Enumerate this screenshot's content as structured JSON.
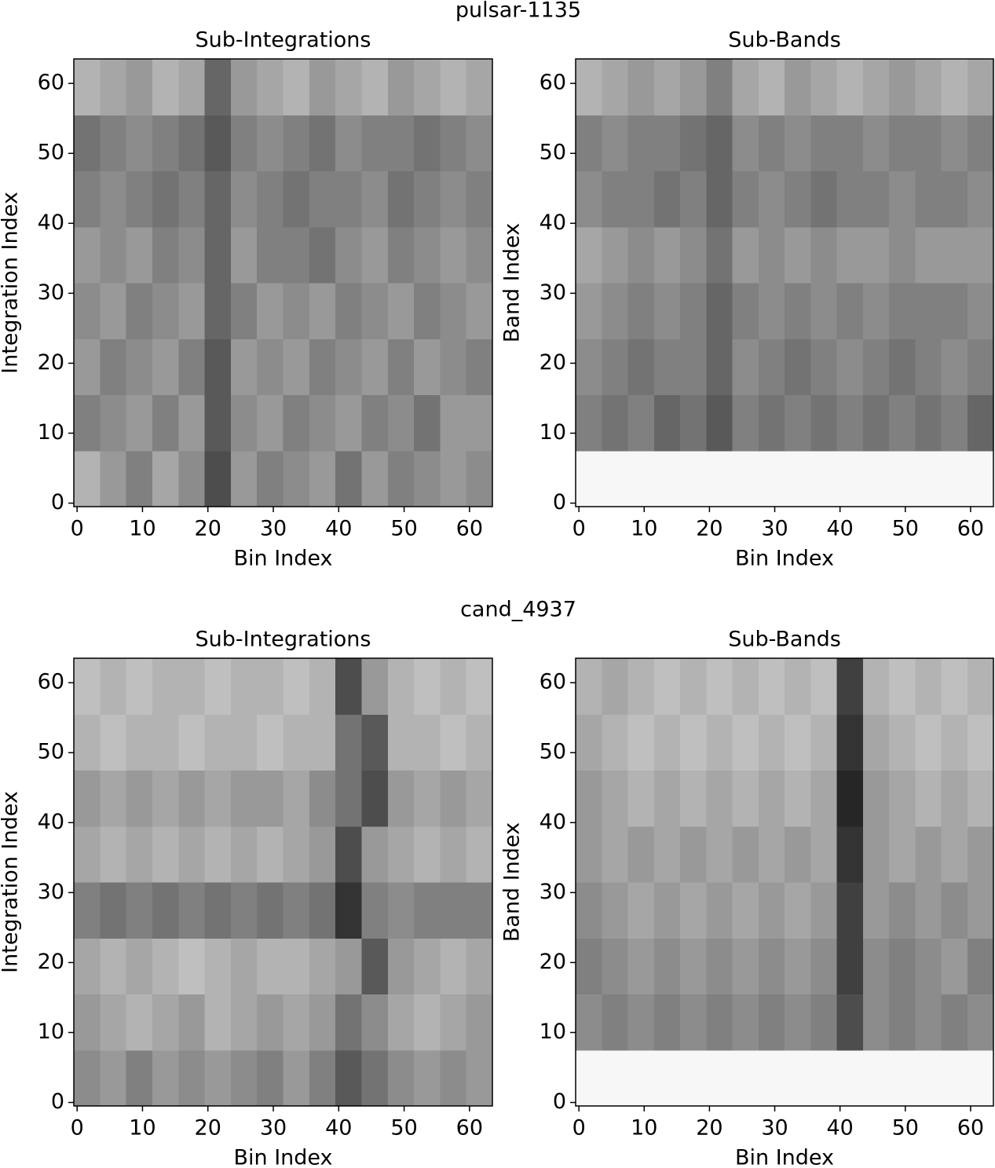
{
  "chart_data": [
    {
      "type": "heatmap",
      "suptitle": "pulsar-1135",
      "title": "Sub-Integrations",
      "xlabel": "Bin Index",
      "ylabel": "Integration Index",
      "xlim": [
        -0.5,
        63.5
      ],
      "ylim": [
        -0.5,
        63.5
      ],
      "xticks": [
        0,
        10,
        20,
        30,
        40,
        50,
        60
      ],
      "yticks": [
        0,
        10,
        20,
        30,
        40,
        50,
        60
      ],
      "colormap": "gray",
      "z": [
        [
          0.7,
          0.6,
          0.5,
          0.65,
          0.55,
          0.3,
          0.6,
          0.5,
          0.55,
          0.6,
          0.45,
          0.6,
          0.5,
          0.55,
          0.6,
          0.55
        ],
        [
          0.5,
          0.55,
          0.6,
          0.5,
          0.6,
          0.35,
          0.55,
          0.6,
          0.5,
          0.55,
          0.6,
          0.5,
          0.55,
          0.45,
          0.6,
          0.6
        ],
        [
          0.6,
          0.5,
          0.55,
          0.6,
          0.5,
          0.35,
          0.6,
          0.55,
          0.6,
          0.5,
          0.55,
          0.6,
          0.5,
          0.6,
          0.55,
          0.5
        ],
        [
          0.55,
          0.6,
          0.5,
          0.55,
          0.6,
          0.4,
          0.5,
          0.6,
          0.55,
          0.6,
          0.5,
          0.55,
          0.6,
          0.5,
          0.55,
          0.6
        ],
        [
          0.6,
          0.55,
          0.6,
          0.5,
          0.55,
          0.4,
          0.6,
          0.5,
          0.5,
          0.45,
          0.55,
          0.6,
          0.5,
          0.55,
          0.6,
          0.55
        ],
        [
          0.5,
          0.55,
          0.5,
          0.45,
          0.5,
          0.4,
          0.55,
          0.5,
          0.45,
          0.5,
          0.5,
          0.55,
          0.45,
          0.5,
          0.55,
          0.5
        ],
        [
          0.45,
          0.5,
          0.55,
          0.5,
          0.45,
          0.35,
          0.5,
          0.55,
          0.5,
          0.45,
          0.55,
          0.5,
          0.5,
          0.45,
          0.5,
          0.55
        ],
        [
          0.7,
          0.65,
          0.6,
          0.7,
          0.65,
          0.4,
          0.6,
          0.65,
          0.7,
          0.6,
          0.65,
          0.7,
          0.6,
          0.65,
          0.7,
          0.65
        ]
      ]
    },
    {
      "type": "heatmap",
      "title": "Sub-Bands",
      "xlabel": "Bin Index",
      "ylabel": "Band Index",
      "xlim": [
        -0.5,
        63.5
      ],
      "ylim": [
        -0.5,
        63.5
      ],
      "xticks": [
        0,
        10,
        20,
        30,
        40,
        50,
        60
      ],
      "yticks": [
        0,
        10,
        20,
        30,
        40,
        50,
        60
      ],
      "colormap": "gray",
      "z": [
        [
          0.97,
          0.97,
          0.97,
          0.97,
          0.97,
          0.97,
          0.97,
          0.97,
          0.97,
          0.97,
          0.97,
          0.97,
          0.97,
          0.97,
          0.97,
          0.97
        ],
        [
          0.5,
          0.45,
          0.5,
          0.4,
          0.45,
          0.35,
          0.5,
          0.45,
          0.5,
          0.45,
          0.5,
          0.45,
          0.5,
          0.45,
          0.5,
          0.4
        ],
        [
          0.55,
          0.5,
          0.45,
          0.5,
          0.5,
          0.4,
          0.55,
          0.5,
          0.45,
          0.5,
          0.55,
          0.5,
          0.45,
          0.5,
          0.55,
          0.5
        ],
        [
          0.6,
          0.55,
          0.5,
          0.55,
          0.5,
          0.4,
          0.5,
          0.55,
          0.5,
          0.55,
          0.5,
          0.55,
          0.5,
          0.5,
          0.5,
          0.55
        ],
        [
          0.65,
          0.6,
          0.55,
          0.6,
          0.55,
          0.45,
          0.6,
          0.55,
          0.6,
          0.55,
          0.6,
          0.6,
          0.55,
          0.6,
          0.6,
          0.6
        ],
        [
          0.55,
          0.5,
          0.5,
          0.45,
          0.5,
          0.4,
          0.5,
          0.55,
          0.5,
          0.45,
          0.5,
          0.5,
          0.55,
          0.5,
          0.5,
          0.55
        ],
        [
          0.5,
          0.55,
          0.5,
          0.5,
          0.45,
          0.4,
          0.55,
          0.5,
          0.55,
          0.5,
          0.5,
          0.55,
          0.5,
          0.5,
          0.55,
          0.5
        ],
        [
          0.7,
          0.65,
          0.6,
          0.65,
          0.6,
          0.5,
          0.65,
          0.7,
          0.6,
          0.65,
          0.7,
          0.65,
          0.6,
          0.65,
          0.7,
          0.65
        ]
      ]
    },
    {
      "type": "heatmap",
      "suptitle": "cand_4937",
      "title": "Sub-Integrations",
      "xlabel": "Bin Index",
      "ylabel": "Integration Index",
      "xlim": [
        -0.5,
        63.5
      ],
      "ylim": [
        -0.5,
        63.5
      ],
      "xticks": [
        0,
        10,
        20,
        30,
        40,
        50,
        60
      ],
      "yticks": [
        0,
        10,
        20,
        30,
        40,
        50,
        60
      ],
      "colormap": "gray",
      "z": [
        [
          0.55,
          0.6,
          0.5,
          0.6,
          0.55,
          0.6,
          0.55,
          0.5,
          0.6,
          0.5,
          0.35,
          0.45,
          0.55,
          0.6,
          0.55,
          0.6
        ],
        [
          0.6,
          0.65,
          0.7,
          0.65,
          0.6,
          0.7,
          0.65,
          0.6,
          0.65,
          0.6,
          0.45,
          0.55,
          0.65,
          0.7,
          0.65,
          0.6
        ],
        [
          0.65,
          0.7,
          0.65,
          0.7,
          0.75,
          0.7,
          0.65,
          0.7,
          0.7,
          0.65,
          0.6,
          0.35,
          0.6,
          0.65,
          0.7,
          0.65
        ],
        [
          0.5,
          0.45,
          0.5,
          0.45,
          0.5,
          0.45,
          0.5,
          0.45,
          0.5,
          0.45,
          0.2,
          0.5,
          0.55,
          0.5,
          0.5,
          0.5
        ],
        [
          0.65,
          0.7,
          0.65,
          0.7,
          0.65,
          0.7,
          0.65,
          0.7,
          0.65,
          0.6,
          0.3,
          0.6,
          0.65,
          0.7,
          0.65,
          0.7
        ],
        [
          0.6,
          0.65,
          0.6,
          0.65,
          0.6,
          0.65,
          0.6,
          0.6,
          0.65,
          0.55,
          0.45,
          0.3,
          0.6,
          0.65,
          0.6,
          0.65
        ],
        [
          0.7,
          0.75,
          0.7,
          0.7,
          0.75,
          0.7,
          0.7,
          0.75,
          0.7,
          0.7,
          0.45,
          0.35,
          0.7,
          0.7,
          0.75,
          0.7
        ],
        [
          0.75,
          0.7,
          0.75,
          0.7,
          0.7,
          0.75,
          0.7,
          0.7,
          0.75,
          0.7,
          0.3,
          0.6,
          0.7,
          0.75,
          0.7,
          0.75
        ]
      ]
    },
    {
      "type": "heatmap",
      "title": "Sub-Bands",
      "xlabel": "Bin Index",
      "ylabel": "Band Index",
      "xlim": [
        -0.5,
        63.5
      ],
      "ylim": [
        -0.5,
        63.5
      ],
      "xticks": [
        0,
        10,
        20,
        30,
        40,
        50,
        60
      ],
      "yticks": [
        0,
        10,
        20,
        30,
        40,
        50,
        60
      ],
      "colormap": "gray",
      "z": [
        [
          0.97,
          0.97,
          0.97,
          0.97,
          0.97,
          0.97,
          0.97,
          0.97,
          0.97,
          0.97,
          0.97,
          0.97,
          0.97,
          0.97,
          0.97,
          0.97
        ],
        [
          0.55,
          0.5,
          0.55,
          0.5,
          0.55,
          0.5,
          0.55,
          0.5,
          0.55,
          0.5,
          0.3,
          0.55,
          0.5,
          0.55,
          0.5,
          0.55
        ],
        [
          0.5,
          0.55,
          0.6,
          0.55,
          0.6,
          0.55,
          0.6,
          0.55,
          0.6,
          0.55,
          0.25,
          0.55,
          0.5,
          0.55,
          0.6,
          0.5
        ],
        [
          0.55,
          0.6,
          0.65,
          0.6,
          0.65,
          0.6,
          0.65,
          0.6,
          0.65,
          0.6,
          0.25,
          0.6,
          0.55,
          0.6,
          0.55,
          0.6
        ],
        [
          0.6,
          0.65,
          0.6,
          0.65,
          0.6,
          0.65,
          0.6,
          0.65,
          0.6,
          0.65,
          0.2,
          0.6,
          0.65,
          0.6,
          0.65,
          0.6
        ],
        [
          0.6,
          0.65,
          0.7,
          0.65,
          0.7,
          0.65,
          0.7,
          0.65,
          0.7,
          0.65,
          0.15,
          0.6,
          0.65,
          0.7,
          0.65,
          0.7
        ],
        [
          0.65,
          0.7,
          0.75,
          0.7,
          0.75,
          0.7,
          0.75,
          0.7,
          0.75,
          0.7,
          0.2,
          0.65,
          0.7,
          0.75,
          0.7,
          0.75
        ],
        [
          0.7,
          0.65,
          0.7,
          0.75,
          0.7,
          0.75,
          0.7,
          0.75,
          0.7,
          0.75,
          0.25,
          0.7,
          0.75,
          0.7,
          0.75,
          0.7
        ]
      ]
    }
  ]
}
